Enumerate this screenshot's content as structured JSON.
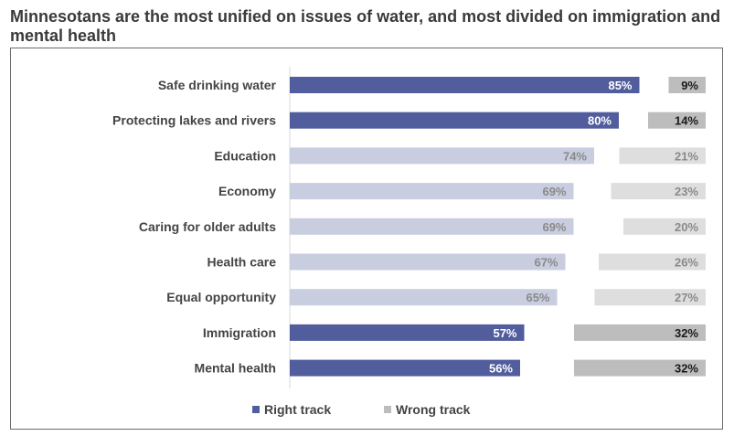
{
  "title": "Minnesotans are the most unified on issues of water, and most divided on immigration and mental health",
  "chart_data": {
    "type": "bar",
    "orientation": "horizontal",
    "categories": [
      "Safe drinking water",
      "Protecting lakes and rivers",
      "Education",
      "Economy",
      "Caring for older adults",
      "Health care",
      "Equal opportunity",
      "Immigration",
      "Mental health"
    ],
    "series": [
      {
        "name": "Right track",
        "values": [
          85,
          80,
          74,
          69,
          69,
          67,
          65,
          57,
          56
        ]
      },
      {
        "name": "Wrong track",
        "values": [
          9,
          14,
          21,
          23,
          20,
          26,
          27,
          32,
          32
        ]
      }
    ],
    "highlighted": [
      true,
      true,
      false,
      false,
      false,
      false,
      false,
      true,
      true
    ],
    "value_suffix": "%",
    "legend_placement": "bottom-center",
    "grid": false,
    "colors": {
      "right_strong": "#515d9c",
      "right_muted": "#c9cde0",
      "wrong_strong": "#bdbdbd",
      "wrong_muted": "#dedede",
      "label_strong_right": "#ffffff",
      "label_muted": "#8a8a8a",
      "label_strong_wrong": "#1a1a1a",
      "legend_right": "#515d9c",
      "legend_wrong": "#bdbdbd"
    }
  }
}
